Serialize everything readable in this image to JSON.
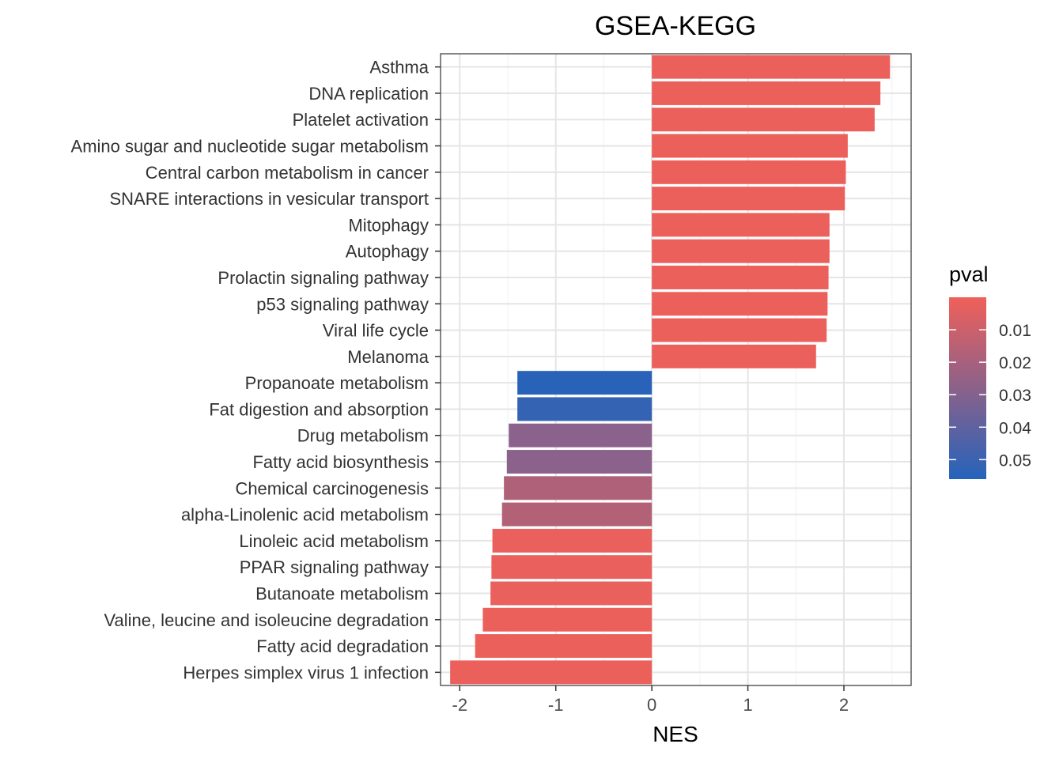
{
  "chart_data": {
    "type": "bar",
    "orientation": "horizontal",
    "title": "GSEA-KEGG",
    "xlabel": "NES",
    "ylabel": "",
    "xlim": [
      -2.2,
      2.7
    ],
    "xticks": [
      -2,
      -1,
      0,
      1,
      2
    ],
    "grid": true,
    "legend": {
      "title": "pval",
      "position": "right",
      "type": "colorbar",
      "range": [
        0.0,
        0.056
      ],
      "ticks": [
        0.01,
        0.02,
        0.03,
        0.04,
        0.05
      ],
      "tick_labels": [
        "0.01",
        "0.02",
        "0.03",
        "0.04",
        "0.05"
      ],
      "low_color": "#F0605A",
      "high_color": "#2563BB"
    },
    "categories": [
      "Asthma",
      "DNA replication",
      "Platelet activation",
      "Amino sugar and nucleotide sugar metabolism",
      "Central carbon metabolism in cancer",
      "SNARE interactions in vesicular transport",
      "Mitophagy",
      "Autophagy",
      "Prolactin signaling pathway",
      "p53 signaling pathway",
      "Viral life cycle",
      "Melanoma",
      "Propanoate metabolism",
      "Fat digestion and absorption",
      "Drug metabolism",
      "Fatty acid biosynthesis",
      "Chemical carcinogenesis",
      "alpha-Linolenic acid metabolism",
      "Linoleic acid metabolism",
      "PPAR signaling pathway",
      "Butanoate metabolism",
      "Valine, leucine and isoleucine degradation",
      "Fatty acid degradation",
      "Herpes simplex virus 1 infection"
    ],
    "values": [
      2.48,
      2.38,
      2.32,
      2.04,
      2.02,
      2.01,
      1.85,
      1.85,
      1.84,
      1.83,
      1.82,
      1.71,
      -1.4,
      -1.4,
      -1.49,
      -1.51,
      -1.54,
      -1.56,
      -1.66,
      -1.67,
      -1.68,
      -1.76,
      -1.84,
      -2.1
    ],
    "pval": [
      0.001,
      0.001,
      0.001,
      0.001,
      0.001,
      0.001,
      0.001,
      0.001,
      0.001,
      0.001,
      0.001,
      0.001,
      0.055,
      0.052,
      0.028,
      0.028,
      0.018,
      0.017,
      0.002,
      0.002,
      0.002,
      0.001,
      0.001,
      0.001
    ]
  }
}
